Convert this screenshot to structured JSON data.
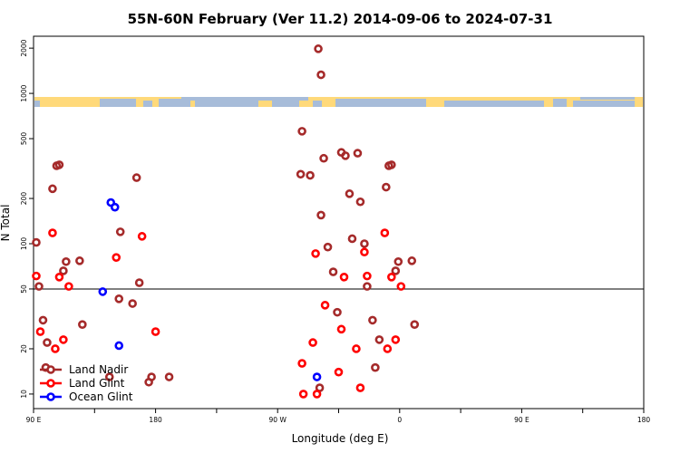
{
  "chart_data": {
    "type": "scatter",
    "title": "55N-60N February (Ver 11.2)   2014-09-06 to 2024-07-31",
    "xlabel": "Longitude (deg E)",
    "ylabel": "N Total",
    "xlim": [
      90,
      360
    ],
    "ylim": [
      8,
      2400
    ],
    "y_scale": "log",
    "reference_line_y": 50,
    "x_tick_values": [
      90,
      135,
      180,
      225,
      270,
      315,
      360
    ],
    "x_tick_labels": [
      "90 E",
      "",
      "180",
      "",
      "90 W",
      "",
      "0",
      "",
      "90 E",
      "",
      "180"
    ],
    "x_tick_positions": [
      90,
      135,
      180,
      225,
      270,
      315,
      360,
      405,
      450,
      495,
      540
    ],
    "x_range_plot": [
      90,
      540
    ],
    "y_ticks": [
      10,
      20,
      50,
      100,
      200,
      500,
      1000,
      2000
    ],
    "y_tick_labels": [
      "10",
      "20",
      "50",
      "100",
      "200",
      "500",
      "1000",
      "2000"
    ],
    "grid": false,
    "legend_position": "bottom-left",
    "colors": {
      "land_nadir": "#a52a2a",
      "land_glint": "#ff0000",
      "ocean_glint": "#0000ff",
      "map_land": "#ffd97a",
      "map_ocean": "#a7bcd9"
    },
    "series": [
      {
        "name": "Land Nadir",
        "color": "#a52a2a",
        "points": [
          [
            92,
            102
          ],
          [
            94,
            52
          ],
          [
            97,
            31
          ],
          [
            99,
            15
          ],
          [
            100,
            22
          ],
          [
            104,
            232
          ],
          [
            107,
            330
          ],
          [
            109,
            335
          ],
          [
            112,
            66
          ],
          [
            114,
            76
          ],
          [
            124,
            77
          ],
          [
            126,
            29
          ],
          [
            146,
            13
          ],
          [
            153,
            43
          ],
          [
            154,
            120
          ],
          [
            163,
            40
          ],
          [
            166,
            275
          ],
          [
            168,
            55
          ],
          [
            175,
            12
          ],
          [
            177,
            13
          ],
          [
            190,
            13
          ],
          [
            287,
            290
          ],
          [
            288,
            560
          ],
          [
            294,
            285
          ],
          [
            301,
            11
          ],
          [
            302,
            155
          ],
          [
            304,
            370
          ],
          [
            307,
            95
          ],
          [
            311,
            65
          ],
          [
            314,
            35
          ],
          [
            317,
            405
          ],
          [
            320,
            385
          ],
          [
            323,
            215
          ],
          [
            325,
            108
          ],
          [
            329,
            400
          ],
          [
            331,
            190
          ],
          [
            334,
            100
          ],
          [
            336,
            52
          ],
          [
            340,
            31
          ],
          [
            342,
            15
          ],
          [
            345,
            23
          ],
          [
            350,
            238
          ],
          [
            352,
            330
          ],
          [
            354,
            335
          ],
          [
            357,
            66
          ],
          [
            359,
            76
          ],
          [
            369,
            77
          ],
          [
            371,
            29
          ]
        ]
      },
      {
        "name": "Land Glint",
        "color": "#ff0000",
        "points": [
          [
            92,
            61
          ],
          [
            95,
            26
          ],
          [
            104,
            118
          ],
          [
            106,
            20
          ],
          [
            109,
            60
          ],
          [
            112,
            23
          ],
          [
            116,
            52
          ],
          [
            151,
            81
          ],
          [
            170,
            112
          ],
          [
            180,
            26
          ],
          [
            288,
            16
          ],
          [
            289,
            10
          ],
          [
            296,
            22
          ],
          [
            298,
            86
          ],
          [
            299,
            10
          ],
          [
            305,
            39
          ],
          [
            315,
            14
          ],
          [
            317,
            27
          ],
          [
            319,
            60
          ],
          [
            328,
            20
          ],
          [
            331,
            11
          ],
          [
            334,
            88
          ],
          [
            336,
            61
          ],
          [
            349,
            118
          ],
          [
            351,
            20
          ],
          [
            354,
            60
          ],
          [
            357,
            23
          ],
          [
            361,
            52
          ]
        ]
      },
      {
        "name": "Ocean Glint",
        "color": "#0000ff",
        "points": [
          [
            141,
            48
          ],
          [
            147,
            188
          ],
          [
            150,
            175
          ],
          [
            153,
            21
          ],
          [
            299,
            13
          ]
        ]
      }
    ],
    "extra_points": [
      {
        "series": "Land Nadir",
        "x": 300,
        "y": 1980
      },
      {
        "series": "Land Nadir",
        "x": 302,
        "y": 1330
      }
    ]
  }
}
